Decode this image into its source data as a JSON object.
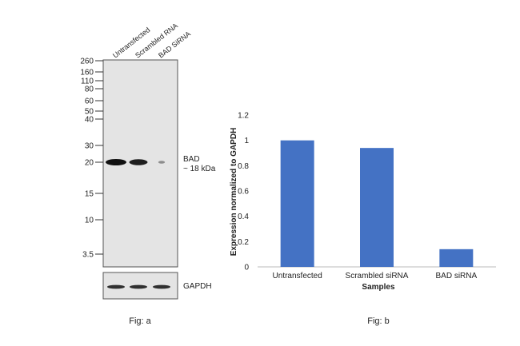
{
  "figure_a": {
    "lanes": [
      "Untransfected",
      "Scrambled RNA",
      "BAD SiRNA"
    ],
    "markers": [
      "260",
      "160",
      "110",
      "80",
      "60",
      "50",
      "40",
      "30",
      "20",
      "15",
      "10",
      "3.5"
    ],
    "band_label_name": "BAD",
    "band_label_size": "~ 18 kDa",
    "loading_control_label": "GAPDH",
    "caption": "Fig: a",
    "band_intensity": [
      1.0,
      0.9,
      0.1
    ],
    "gapdh_intensity": [
      1.0,
      1.0,
      1.0
    ]
  },
  "figure_b": {
    "caption": "Fig: b"
  },
  "colors": {
    "bar": "#4472c4",
    "blot_bg": "#e4e4e4",
    "band": "#111111"
  },
  "chart_data": {
    "type": "bar",
    "categories": [
      "Untransfected",
      "Scrambled siRNA",
      "BAD siRNA"
    ],
    "values": [
      1.0,
      0.94,
      0.14
    ],
    "title": "",
    "xlabel": "Samples",
    "ylabel": "Expression normalized to GAPDH",
    "ylim": [
      0,
      1.2
    ],
    "yticks": [
      "0",
      "0.2",
      "0.4",
      "0.6",
      "0.8",
      "1",
      "1.2"
    ],
    "grid": false,
    "legend": "none"
  }
}
